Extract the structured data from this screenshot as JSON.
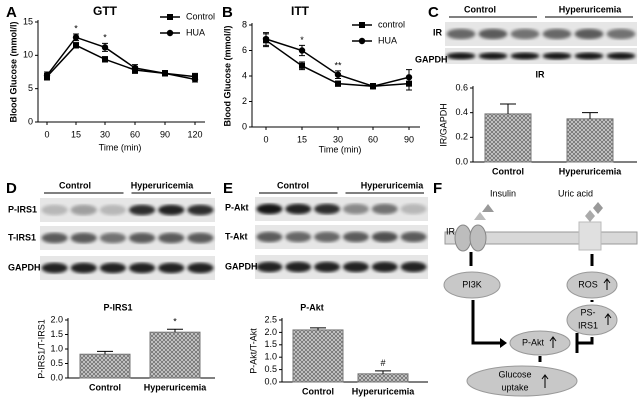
{
  "panels": [
    "A",
    "B",
    "C",
    "D",
    "E",
    "F"
  ],
  "chart_data": [
    {
      "type": "line",
      "title": "GTT",
      "x_label": "Time (min)",
      "y_label": "Blood Glucose (mmol/l)",
      "categories": [
        "0",
        "15",
        "30",
        "60",
        "90",
        "120"
      ],
      "series": [
        {
          "name": "Control",
          "color": "#000000",
          "marker": "square",
          "values": [
            6.8,
            11.5,
            9.4,
            7.8,
            7.3,
            6.8
          ],
          "errors": [
            0.5,
            0.4,
            0.4,
            0.5,
            0.4,
            0.5
          ]
        },
        {
          "name": "HUA",
          "color": "#000000",
          "marker": "circle",
          "values": [
            7.0,
            12.7,
            11.2,
            8.1,
            7.3,
            6.4
          ],
          "errors": [
            0.5,
            0.5,
            0.6,
            0.5,
            0.4,
            0.4
          ]
        }
      ],
      "ylim": [
        0,
        15
      ],
      "yticks": [
        0,
        5,
        10,
        15
      ],
      "annotations": [
        {
          "text": "*",
          "category": "15"
        },
        {
          "text": "*",
          "category": "30"
        }
      ]
    },
    {
      "type": "line",
      "title": "ITT",
      "x_label": "Time (min)",
      "y_label": "Blood Glucose (mmol/l)",
      "categories": [
        "0",
        "15",
        "30",
        "60",
        "90"
      ],
      "series": [
        {
          "name": "control",
          "color": "#000000",
          "marker": "square",
          "values": [
            6.8,
            4.8,
            3.4,
            3.2,
            3.4
          ],
          "errors": [
            0.5,
            0.3,
            0.2,
            0.2,
            0.5
          ]
        },
        {
          "name": "HUA",
          "color": "#000000",
          "marker": "circle",
          "values": [
            6.9,
            6.0,
            4.1,
            3.2,
            3.9
          ],
          "errors": [
            0.5,
            0.4,
            0.3,
            0.2,
            0.6
          ]
        }
      ],
      "ylim": [
        0,
        8
      ],
      "yticks": [
        0,
        2,
        4,
        6,
        8
      ],
      "annotations": [
        {
          "text": "*",
          "category": "15"
        },
        {
          "text": "**",
          "category": "30"
        }
      ]
    },
    {
      "type": "bar",
      "title": "IR",
      "y_label": "IR/GAPDH",
      "categories": [
        "Control",
        "Hyperuricemia"
      ],
      "values": [
        0.39,
        0.35
      ],
      "errors": [
        0.08,
        0.05
      ],
      "color": "#c8c8c8",
      "ylim": [
        0,
        0.6
      ],
      "yticks": [
        {
          "value": 0,
          "label": "0.0"
        },
        0.2,
        0.4,
        0.6
      ],
      "annotations": []
    },
    {
      "type": "bar",
      "title": "P-IRS1",
      "y_label": "P-IRS1/T-IRS1",
      "categories": [
        "Control",
        "Hyperuricemia"
      ],
      "values": [
        0.82,
        1.58
      ],
      "errors": [
        0.1,
        0.1
      ],
      "color": "#c8c8c8",
      "ylim": [
        0,
        2
      ],
      "yticks": [
        {
          "value": 0,
          "label": "0.0"
        },
        0.5,
        {
          "value": 1,
          "label": "1.0"
        },
        1.5,
        {
          "value": 2,
          "label": "2.0"
        }
      ],
      "annotations": [
        {
          "text": "*",
          "category": "Hyperuricemia"
        }
      ]
    },
    {
      "type": "bar",
      "title": "P-Akt",
      "y_label": "P-Akt/T-Akt",
      "categories": [
        "Control",
        "Hyperuricemia"
      ],
      "values": [
        2.1,
        0.33
      ],
      "errors": [
        0.08,
        0.12
      ],
      "color": "#c8c8c8",
      "ylim": [
        0,
        2.5
      ],
      "yticks": [
        {
          "value": 0,
          "label": "0.0"
        },
        0.5,
        {
          "value": 1,
          "label": "1.0"
        },
        1.5,
        {
          "value": 2,
          "label": "2.0"
        },
        2.5
      ],
      "annotations": [
        {
          "text": "#",
          "category": "Hyperuricemia"
        }
      ]
    }
  ],
  "blots": [
    {
      "groups": [
        "Control",
        "Hyperuricemia"
      ],
      "rows": [
        "IR",
        "GAPDH"
      ]
    },
    {
      "groups": [
        "Control",
        "Hyperuricemia"
      ],
      "rows": [
        "P-IRS1",
        "T-IRS1",
        "GAPDH"
      ]
    },
    {
      "groups": [
        "Control",
        "Hyperuricemia"
      ],
      "rows": [
        "P-Akt",
        "T-Akt",
        "GAPDH"
      ]
    }
  ],
  "diagram": {
    "receptor": "IR",
    "ligands": [
      "Insulin",
      "Uric acid"
    ],
    "pi3k": "PI3K",
    "ros": "ROS",
    "ps_irs1": [
      "PS-",
      "IRS1"
    ],
    "p_akt": "P-Akt",
    "glucose_uptake": [
      "Glucose",
      "uptake"
    ]
  }
}
